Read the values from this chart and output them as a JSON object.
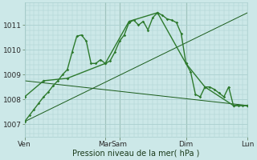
{
  "background_color": "#cce8e8",
  "grid_color": "#aacfcf",
  "line_color": "#1a5c1a",
  "line_color2": "#2d7a2d",
  "title": "Pression niveau de la mer( hPa )",
  "ylim": [
    1006.5,
    1011.9
  ],
  "yticks": [
    1007,
    1008,
    1009,
    1010,
    1011
  ],
  "x_tick_positions": [
    0,
    17,
    20,
    34,
    47
  ],
  "x_tick_labels": [
    "Ven",
    "Mar",
    "Sam",
    "Dim",
    "Lun"
  ],
  "xlim": [
    0,
    47
  ],
  "series1_x": [
    0,
    1,
    2,
    3,
    4,
    5,
    6,
    7,
    8,
    9,
    10,
    11,
    12,
    13,
    14,
    15,
    16,
    17,
    18,
    19,
    20,
    21,
    22,
    23,
    24,
    25,
    26,
    27,
    28,
    29,
    30,
    31,
    32,
    33,
    34,
    35,
    36,
    37,
    38,
    39,
    40,
    41,
    42,
    43,
    44,
    45,
    46,
    47
  ],
  "series1_y": [
    1007.1,
    1007.35,
    1007.6,
    1007.85,
    1008.1,
    1008.3,
    1008.55,
    1008.75,
    1009.0,
    1009.2,
    1009.9,
    1010.55,
    1010.6,
    1010.35,
    1009.45,
    1009.45,
    1009.6,
    1009.45,
    1009.55,
    1009.9,
    1010.35,
    1010.6,
    1011.1,
    1011.2,
    1011.0,
    1011.15,
    1010.8,
    1011.3,
    1011.5,
    1011.4,
    1011.25,
    1011.2,
    1011.1,
    1010.65,
    1009.45,
    1009.1,
    1008.2,
    1008.1,
    1008.5,
    1008.5,
    1008.4,
    1008.25,
    1008.1,
    1008.5,
    1007.75,
    1007.75,
    1007.75,
    1007.75
  ],
  "series2_x": [
    0,
    4,
    9,
    17,
    22,
    28,
    34,
    38,
    44,
    47
  ],
  "series2_y": [
    1008.1,
    1008.75,
    1008.85,
    1009.45,
    1011.15,
    1011.5,
    1009.45,
    1008.5,
    1007.75,
    1007.75
  ],
  "series3_x": [
    0,
    47
  ],
  "series3_y": [
    1008.75,
    1007.75
  ],
  "series4_x": [
    0,
    47
  ],
  "series4_y": [
    1007.1,
    1011.5
  ],
  "vline_positions": [
    0,
    17,
    20,
    34,
    47
  ]
}
